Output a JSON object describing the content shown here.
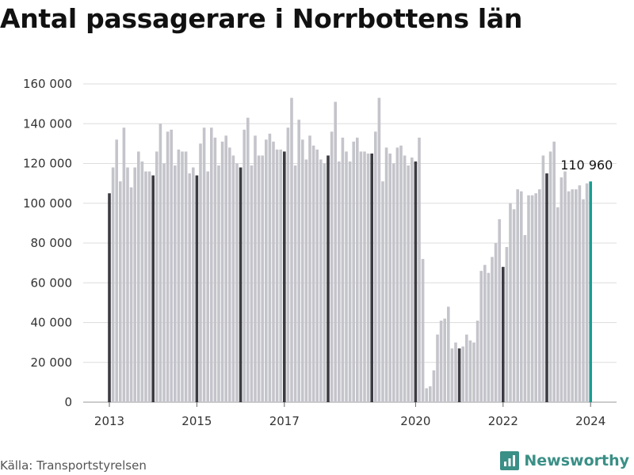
{
  "title": "Antal passagerare i Norrbottens län",
  "source": "Källa: Transportstyrelsen",
  "brand": {
    "name": "Newsworthy"
  },
  "colors": {
    "bar": "#c4c4cb",
    "january_bar": "#3b3b42",
    "highlight": "#1a9e92",
    "grid": "#dddddd",
    "brand": "#3a8f86"
  },
  "chart_data": {
    "type": "bar",
    "title": "Antal passagerare i Norrbottens län",
    "xlabel": "",
    "ylabel": "",
    "ylim": [
      0,
      160000
    ],
    "yticks": [
      {
        "value": 0,
        "label": "0"
      },
      {
        "value": 20000,
        "label": "20 000"
      },
      {
        "value": 40000,
        "label": "40 000"
      },
      {
        "value": 60000,
        "label": "60 000"
      },
      {
        "value": 80000,
        "label": "80 000"
      },
      {
        "value": 100000,
        "label": "100 000"
      },
      {
        "value": 120000,
        "label": "120 000"
      },
      {
        "value": 140000,
        "label": "140 000"
      },
      {
        "value": 160000,
        "label": "160 000"
      }
    ],
    "xticks": [
      "2013",
      "2015",
      "2017",
      "2020",
      "2022",
      "2024"
    ],
    "grid": true,
    "start": "2013-01",
    "values": [
      105000,
      118000,
      132000,
      111000,
      138000,
      118000,
      108000,
      118000,
      126000,
      121000,
      116000,
      116000,
      114000,
      126000,
      140000,
      120000,
      136000,
      137000,
      119000,
      127000,
      126000,
      126000,
      115000,
      118000,
      114000,
      130000,
      138000,
      116000,
      138000,
      133000,
      119000,
      131000,
      134000,
      128000,
      124000,
      120000,
      118000,
      137000,
      143000,
      119000,
      134000,
      124000,
      124000,
      132000,
      135000,
      131000,
      127000,
      127000,
      126000,
      138000,
      153000,
      119000,
      142000,
      132000,
      122000,
      134000,
      129000,
      127000,
      122000,
      120000,
      124000,
      136000,
      151000,
      121000,
      133000,
      126000,
      121000,
      131000,
      133000,
      126000,
      126000,
      125000,
      125000,
      136000,
      153000,
      111000,
      128000,
      125000,
      120000,
      128000,
      129000,
      124000,
      119000,
      123000,
      121000,
      133000,
      72000,
      7000,
      8000,
      16000,
      34000,
      41000,
      42000,
      48000,
      27000,
      30000,
      27000,
      28000,
      34000,
      31000,
      30000,
      41000,
      66000,
      69000,
      65000,
      73000,
      80000,
      92000,
      68000,
      78000,
      100000,
      97000,
      107000,
      106000,
      84000,
      104000,
      104000,
      105000,
      107000,
      124000,
      115000,
      126000,
      131000,
      98000,
      113000,
      116000,
      106000,
      107000,
      107000,
      109000,
      102000,
      110000,
      110960
    ],
    "annotation": {
      "text": "110 960",
      "value": 110960
    }
  }
}
